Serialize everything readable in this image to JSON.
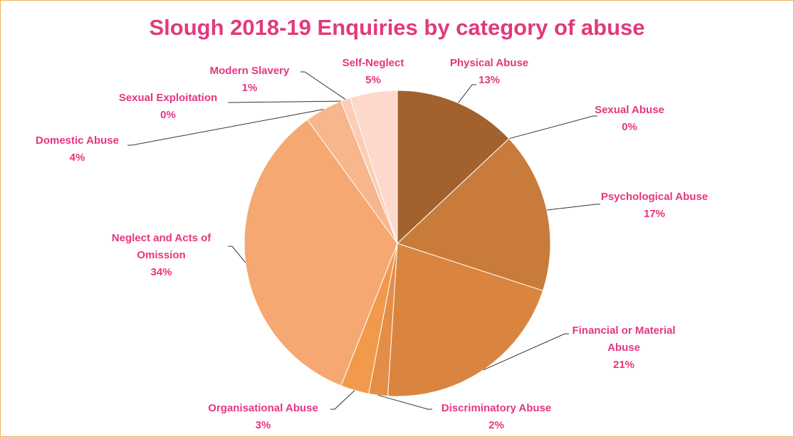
{
  "chart_data": {
    "type": "pie",
    "title": "Slough 2018-19 Enquiries by category of abuse",
    "categories": [
      "Physical Abuse",
      "Sexual Abuse",
      "Psychological Abuse",
      "Financial or Material Abuse",
      "Discriminatory Abuse",
      "Organisational Abuse",
      "Neglect and Acts of Omission",
      "Domestic Abuse",
      "Sexual Exploitation",
      "Modern Slavery",
      "Self-Neglect"
    ],
    "values": [
      13,
      0,
      17,
      21,
      2,
      3,
      34,
      4,
      0,
      1,
      5
    ],
    "value_labels": [
      "13%",
      "0%",
      "17%",
      "21%",
      "2%",
      "3%",
      "34%",
      "4%",
      "0%",
      "1%",
      "5%"
    ],
    "colors": [
      "#a2612d",
      "#b56a31",
      "#c97b3b",
      "#d9853f",
      "#e48d47",
      "#f29a4c",
      "#f5a872",
      "#f7b68c",
      "#f9c3a2",
      "#fbcdb5",
      "#fdd9cb"
    ]
  }
}
